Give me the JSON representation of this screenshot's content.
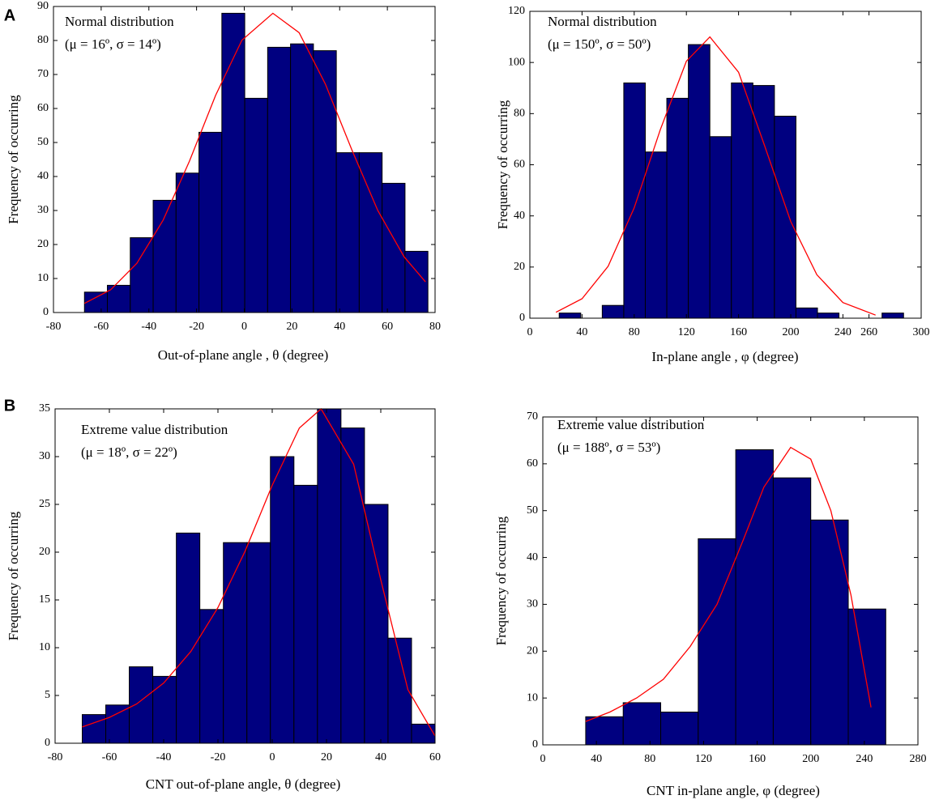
{
  "chart_data": [
    {
      "type": "histogram",
      "panel_label": "A",
      "annotations": [
        "Normal distribution",
        "(μ = 16º, σ = 14º)"
      ],
      "xlabel": "Out-of-plane angle , θ (degree)",
      "ylabel": "Frequency  of  occurring",
      "bins": [
        -67,
        -57.4,
        -47.8,
        -38.2,
        -28.6,
        -19,
        -9.4,
        0.2,
        9.8,
        19.4,
        29,
        38.6,
        48.2,
        57.8,
        67.4,
        77
      ],
      "values": [
        6,
        8,
        22,
        33,
        41,
        53,
        88,
        63,
        78,
        79,
        77,
        47,
        47,
        38,
        18
      ],
      "color": "#000080",
      "edgecolor": "#000000",
      "curve": {
        "color": "#ff0000",
        "x": [
          -67,
          -56,
          -45,
          -34,
          -23,
          -12,
          -1,
          12,
          23,
          34,
          45,
          56,
          67,
          76
        ],
        "values": [
          2.7,
          6.7,
          14.5,
          27.2,
          44.5,
          63.9,
          80.1,
          88,
          82.3,
          67.2,
          48,
          30,
          16.4,
          9
        ]
      },
      "xlim": [
        -80,
        80
      ],
      "xticks": [
        -80,
        -60,
        -40,
        -20,
        0,
        20,
        40,
        60,
        80
      ],
      "ylim": [
        0,
        90
      ],
      "yticks": [
        0,
        10,
        20,
        30,
        40,
        50,
        60,
        70,
        80,
        90
      ]
    },
    {
      "type": "histogram",
      "annotations": [
        "Normal distribution",
        "(μ = 150º, σ = 50º)"
      ],
      "xlabel": "In-plane angle , φ (degree)",
      "ylabel": "Frequency  of  occurring",
      "bins": [
        22.5,
        39,
        55.5,
        72,
        88.5,
        105,
        121.5,
        138,
        154.5,
        171,
        187.5,
        204,
        220.5,
        237,
        253.5,
        270,
        286.5
      ],
      "values": [
        2,
        0,
        5,
        92,
        65,
        86,
        107,
        71,
        92,
        91,
        79,
        4,
        2,
        0,
        0,
        2
      ],
      "color": "#000080",
      "edgecolor": "#000000",
      "curve": {
        "color": "#ff0000",
        "x": [
          20,
          40,
          60,
          80,
          100,
          120,
          138,
          160,
          180,
          200,
          220,
          240,
          265
        ],
        "values": [
          2.3,
          7.6,
          20.3,
          43.2,
          73.7,
          100.5,
          110,
          96.2,
          67.4,
          37.8,
          17,
          6.1,
          1.2
        ]
      },
      "xlim": [
        0,
        300
      ],
      "xticks": [
        0,
        40,
        80,
        120,
        160,
        200,
        240,
        260,
        300
      ],
      "ylim": [
        0,
        120
      ],
      "yticks": [
        0,
        20,
        40,
        60,
        80,
        100,
        120
      ]
    },
    {
      "type": "histogram",
      "panel_label": "B",
      "annotations": [
        "Extreme value distribution",
        "(μ =  18º, σ = 22º)"
      ],
      "xlabel": "CNT out-of-plane angle, θ (degree)",
      "ylabel": "Frequency  of  occurring",
      "bins": [
        -70,
        -61.33,
        -52.67,
        -44,
        -35.33,
        -26.67,
        -18,
        -9.33,
        -0.67,
        8,
        16.67,
        25.33,
        34,
        42.67,
        51.33,
        60
      ],
      "values": [
        3,
        4,
        8,
        7,
        22,
        14,
        21,
        21,
        30,
        27,
        35,
        33,
        25,
        11,
        2
      ],
      "color": "#000080",
      "edgecolor": "#000000",
      "curve": {
        "color": "#ff0000",
        "x": [
          -70,
          -60,
          -50,
          -40,
          -30,
          -20,
          -10,
          0,
          10,
          18,
          30,
          40,
          50,
          60
        ],
        "values": [
          1.7,
          2.7,
          4.1,
          6.3,
          9.6,
          14.2,
          20.1,
          27,
          33,
          35,
          29.2,
          17.1,
          5.6,
          0.75
        ]
      },
      "xlim": [
        -80,
        60
      ],
      "xticks": [
        -80,
        -60,
        -40,
        -20,
        0,
        20,
        40,
        60
      ],
      "ylim": [
        0,
        35
      ],
      "yticks": [
        0,
        5,
        10,
        15,
        20,
        25,
        30,
        35
      ]
    },
    {
      "type": "histogram",
      "annotations": [
        "Extreme value distribution",
        "(μ =  188º, σ = 53º)"
      ],
      "xlabel": "CNT in-plane angle, φ (degree)",
      "ylabel": "Frequency  of  occurring",
      "bins": [
        32,
        60,
        88,
        116,
        144,
        172,
        200,
        228,
        256
      ],
      "values": [
        6,
        9,
        7,
        44,
        63,
        57,
        48,
        29
      ],
      "color": "#000080",
      "edgecolor": "#000000",
      "curve": {
        "color": "#ff0000",
        "x": [
          32,
          50,
          70,
          90,
          110,
          130,
          150,
          165,
          185,
          200,
          215,
          230,
          245
        ],
        "values": [
          5,
          7,
          10,
          14,
          21,
          30,
          44,
          55,
          63.5,
          61,
          50,
          32,
          8
        ]
      },
      "xlim": [
        0,
        280
      ],
      "xticks": [
        0,
        40,
        80,
        120,
        160,
        200,
        240,
        280
      ],
      "ylim": [
        0,
        70
      ],
      "yticks": [
        0,
        10,
        20,
        30,
        40,
        50,
        60,
        70
      ]
    }
  ]
}
